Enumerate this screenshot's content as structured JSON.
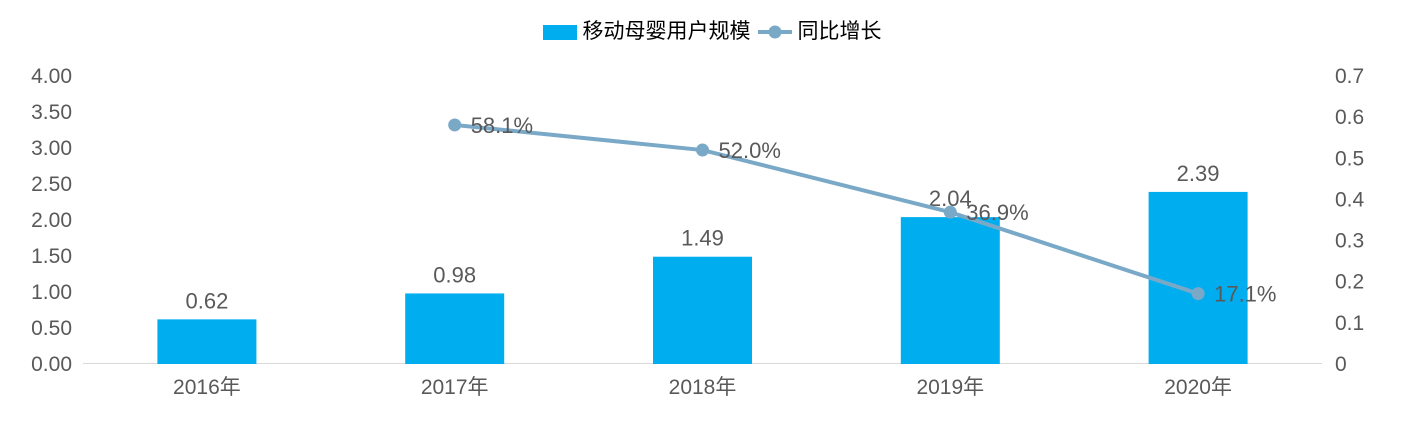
{
  "chart_data": {
    "type": "bar",
    "subtype": "combo-bar-line-dual-axis",
    "title": "",
    "categories": [
      "2016年",
      "2017年",
      "2018年",
      "2019年",
      "2020年"
    ],
    "series": [
      {
        "name": "移动母婴用户规模",
        "type": "bar",
        "axis": "left",
        "color": "#00AEEF",
        "values": [
          0.62,
          0.98,
          1.49,
          2.04,
          2.39
        ],
        "labels": [
          "0.62",
          "0.98",
          "1.49",
          "2.04",
          "2.39"
        ]
      },
      {
        "name": "同比增长",
        "type": "line",
        "axis": "right",
        "color": "#7AA9C8",
        "values": [
          null,
          0.581,
          0.52,
          0.369,
          0.171
        ],
        "labels": [
          null,
          "58.1%",
          "52.0%",
          "36.9%",
          "17.1%"
        ]
      }
    ],
    "left_axis": {
      "min": 0,
      "max": 4,
      "step": 0.5,
      "ticks": [
        "0.00",
        "0.50",
        "1.00",
        "1.50",
        "2.00",
        "2.50",
        "3.00",
        "3.50",
        "4.00"
      ]
    },
    "right_axis": {
      "min": 0,
      "max": 0.7,
      "step": 0.1,
      "ticks": [
        "0",
        "0.1",
        "0.2",
        "0.3",
        "0.4",
        "0.5",
        "0.6",
        "0.7"
      ]
    },
    "legend_position": "top-center",
    "grid": false,
    "text_color": "#595959",
    "axis_line_color": "#D9D9D9"
  }
}
